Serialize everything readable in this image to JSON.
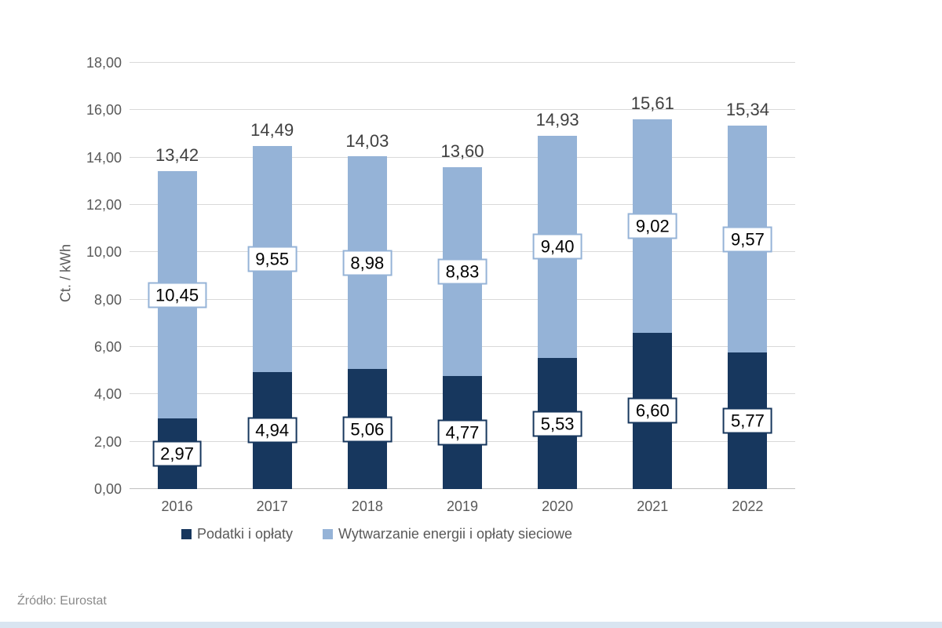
{
  "chart_data": {
    "type": "bar",
    "stacked": true,
    "title": "",
    "ylabel": "Ct. / kWh",
    "xlabel": "",
    "ylim": [
      0,
      18
    ],
    "ytick_step": 2,
    "grid": true,
    "legend_position": "bottom",
    "categories": [
      "2016",
      "2017",
      "2018",
      "2019",
      "2020",
      "2021",
      "2022"
    ],
    "series": [
      {
        "name": "Podatki i opłaty",
        "slug": "podatki-i-oplaty",
        "color": "#17375E",
        "values": [
          2.97,
          4.94,
          5.06,
          4.77,
          5.53,
          6.6,
          5.77
        ],
        "labels": [
          "2,97",
          "4,94",
          "5,06",
          "4,77",
          "5,53",
          "6,60",
          "5,77"
        ]
      },
      {
        "name": "Wytwarzanie energii i opłaty sieciowe",
        "slug": "wytwarzanie-energii",
        "color": "#95B3D7",
        "values": [
          10.45,
          9.55,
          8.98,
          8.83,
          9.4,
          9.02,
          9.57
        ],
        "labels": [
          "10,45",
          "9,55",
          "8,98",
          "8,83",
          "9,40",
          "9,02",
          "9,57"
        ]
      }
    ],
    "totals": [
      13.42,
      14.49,
      14.03,
      13.6,
      14.93,
      15.61,
      15.34
    ],
    "total_labels": [
      "13,42",
      "14,49",
      "14,03",
      "13,60",
      "14,93",
      "15,61",
      "15,34"
    ],
    "ytick_labels": [
      "0,00",
      "2,00",
      "4,00",
      "6,00",
      "8,00",
      "10,00",
      "12,00",
      "14,00",
      "16,00",
      "18,00"
    ]
  },
  "source": {
    "label": "Źródło: Eurostat"
  },
  "colors": {
    "background": "#FFFFFF",
    "grid": "#D9D9D9",
    "axis_line": "#BFBFBF",
    "tick_text": "#595959",
    "total_text": "#404040",
    "value_text": "#000000",
    "value_box_bg": "#FFFFFF",
    "legend_text": "#595959",
    "source_text": "#8A8A8A",
    "bottom_strip": "#D9E5F1"
  }
}
